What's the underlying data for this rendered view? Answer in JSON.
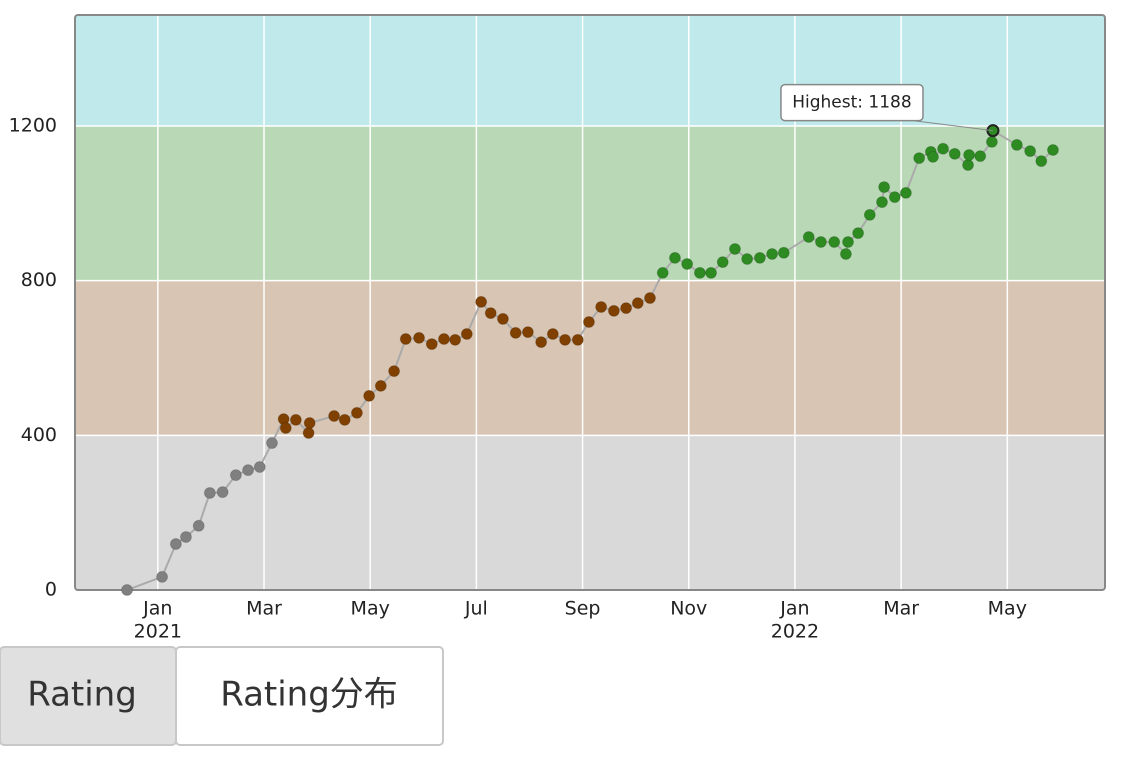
{
  "chart_data": {
    "type": "line",
    "x": [
      -0.58,
      0.08,
      0.34,
      0.53,
      0.77,
      0.98,
      1.22,
      1.47,
      1.7,
      1.92,
      2.15,
      2.37,
      2.41,
      2.6,
      2.84,
      2.86,
      3.32,
      3.52,
      3.75,
      3.98,
      4.2,
      4.45,
      4.67,
      4.92,
      5.16,
      5.39,
      5.6,
      5.82,
      6.09,
      6.27,
      6.5,
      6.74,
      6.97,
      7.22,
      7.44,
      7.67,
      7.91,
      8.12,
      8.35,
      8.59,
      8.82,
      9.04,
      9.27,
      9.51,
      9.74,
      9.97,
      10.21,
      10.42,
      10.64,
      10.87,
      11.1,
      11.34,
      11.57,
      11.79,
      12.26,
      12.49,
      12.74,
      12.96,
      13.0,
      13.19,
      13.41,
      13.64,
      13.68,
      13.88,
      14.09,
      14.34,
      14.56,
      14.6,
      14.79,
      15.01,
      15.26,
      15.28,
      15.49,
      15.71,
      15.73,
      16.18,
      16.43,
      16.64,
      16.86
    ],
    "values": [
      0,
      34,
      119,
      137,
      166,
      251,
      253,
      297,
      310,
      318,
      380,
      442,
      419,
      440,
      406,
      432,
      450,
      440,
      458,
      502,
      528,
      566,
      649,
      652,
      636,
      649,
      647,
      662,
      745,
      716,
      701,
      665,
      667,
      641,
      662,
      647,
      647,
      693,
      732,
      722,
      729,
      742,
      755,
      820,
      859,
      843,
      820,
      820,
      848,
      882,
      856,
      859,
      869,
      872,
      913,
      900,
      900,
      869,
      900,
      923,
      970,
      1003,
      1042,
      1016,
      1027,
      1117,
      1133,
      1120,
      1141,
      1128,
      1099,
      1125,
      1122,
      1159,
      1188,
      1151,
      1135,
      1109,
      1138
    ],
    "line_color": "#aaaaaa",
    "bands": [
      {
        "from": 0,
        "to": 400,
        "fill": "#d9d9d9",
        "point_color": "#808080"
      },
      {
        "from": 400,
        "to": 800,
        "fill": "#d8c5b3",
        "point_color": "#804000"
      },
      {
        "from": 800,
        "to": 1200,
        "fill": "#b9d9b6",
        "point_color": "#2e8b22"
      },
      {
        "from": 1200,
        "to": 1487,
        "fill": "#bfe9ea",
        "point_color": "#00c0c0"
      }
    ],
    "xlim": [
      -1.56,
      17.84
    ],
    "ylim": [
      0,
      1487
    ],
    "yticks": [
      0,
      400,
      800,
      1200
    ],
    "xticks": [
      {
        "value": 0,
        "label": "Jan",
        "year": "2021"
      },
      {
        "value": 2,
        "label": "Mar"
      },
      {
        "value": 4,
        "label": "May"
      },
      {
        "value": 6,
        "label": "Jul"
      },
      {
        "value": 8,
        "label": "Sep"
      },
      {
        "value": 10,
        "label": "Nov"
      },
      {
        "value": 12,
        "label": "Jan",
        "year": "2022"
      },
      {
        "value": 14,
        "label": "Mar"
      },
      {
        "value": 16,
        "label": "May"
      }
    ],
    "grid": true,
    "annotation": "Highest: 1188"
  },
  "tabs": [
    "Rating",
    "Rating分布"
  ]
}
